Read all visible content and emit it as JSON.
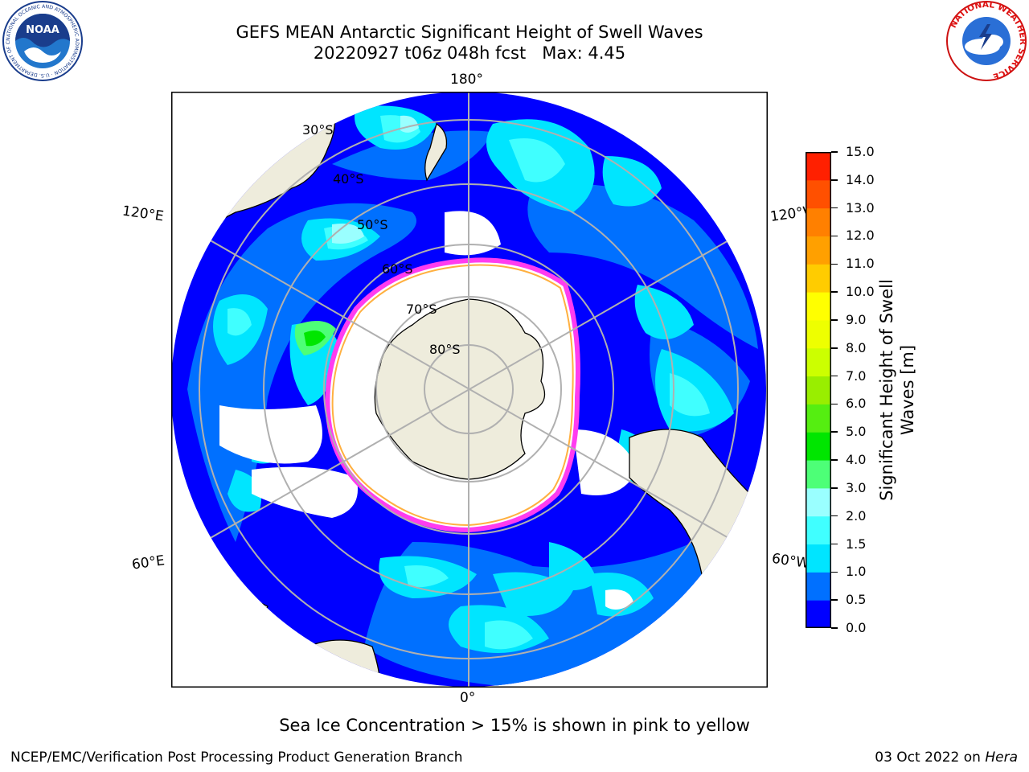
{
  "title": {
    "line1": "GEFS MEAN Antarctic Significant Height of Swell Waves",
    "line2": "20220927 t06z 048h fcst   Max: 4.45"
  },
  "logos": {
    "left": {
      "name": "noaa-logo",
      "text": "NOAA",
      "ring_text": "NATIONAL OCEANIC AND ATMOSPHERIC ADMINISTRATION · U.S. DEPARTMENT OF COMMERCE"
    },
    "right": {
      "name": "nws-logo",
      "ring_text": "NATIONAL WEATHER SERVICE"
    }
  },
  "map": {
    "projection": "south-polar stereographic",
    "longitude_labels": {
      "top": "180°",
      "bottom": "0°",
      "upper_left": "120°E",
      "lower_left": "60°E",
      "upper_right": "120°W",
      "lower_right": "60°W"
    },
    "latitude_labels": [
      "30°S",
      "40°S",
      "50°S",
      "60°S",
      "70°S",
      "80°S"
    ],
    "colors": {
      "land": "#eeecdc",
      "ice_pink": "#ff3cf0",
      "ice_orange": "#ffb040",
      "open_ice": "#ffffff",
      "grid": "#b0b0b0"
    }
  },
  "colorbar": {
    "label": "Significant Height of Swell Waves [m]",
    "ticks": [
      "0.0",
      "0.5",
      "1.0",
      "1.5",
      "2.0",
      "3.0",
      "4.0",
      "5.0",
      "6.0",
      "7.0",
      "8.0",
      "9.0",
      "10.0",
      "11.0",
      "12.0",
      "13.0",
      "14.0",
      "15.0"
    ],
    "colors": [
      "#0000ff",
      "#0070ff",
      "#00e5ff",
      "#40ffff",
      "#9affff",
      "#4dff77",
      "#00e600",
      "#55ee11",
      "#99ee00",
      "#ccff00",
      "#eeff00",
      "#ffff00",
      "#ffcc00",
      "#ffa000",
      "#ff8000",
      "#ff5000",
      "#ff2000",
      "#ff0000"
    ]
  },
  "note": "Sea Ice Concentration > 15% is shown in pink to yellow",
  "footer": {
    "left": "NCEP/EMC/Verification Post Processing Product Generation Branch",
    "date": "03 Oct 2022 on ",
    "host": "Hera"
  }
}
